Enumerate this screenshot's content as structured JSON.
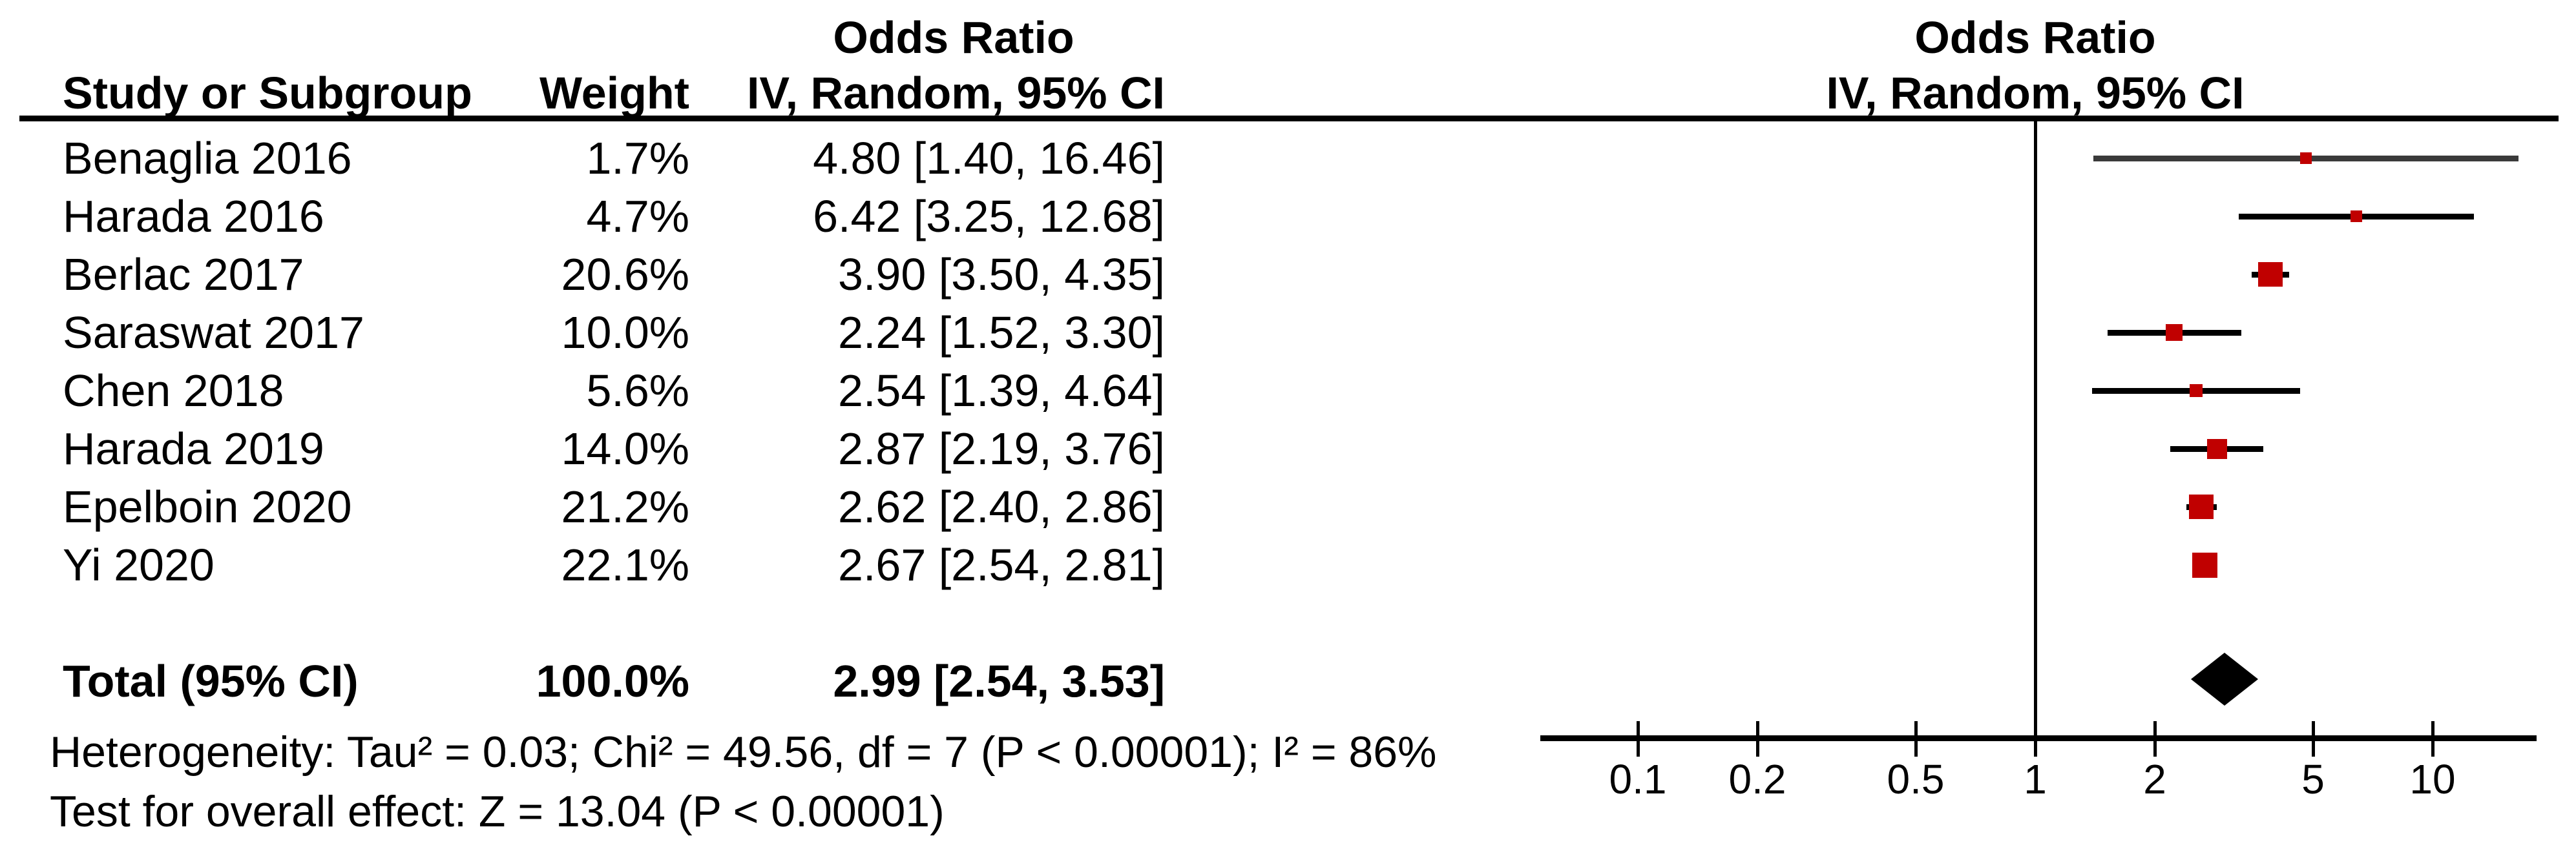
{
  "table": {
    "study_col_header": "Study or Subgroup",
    "weight_col_header": "Weight",
    "stat_col_header_line1": "Odds Ratio",
    "stat_col_header_line2": "IV, Random, 95% CI",
    "plot_header_line1": "Odds Ratio",
    "plot_header_line2": "IV, Random, 95% CI"
  },
  "chart_data": {
    "type": "forest",
    "effect_measure": "Odds Ratio",
    "model": "IV, Random, 95% CI",
    "x_scale": "log10",
    "x_ticks": [
      0.1,
      0.2,
      0.5,
      1,
      2,
      5,
      10
    ],
    "no_effect_value": 1,
    "marker_color": "#c00000",
    "diamond_color": "#000000",
    "studies": [
      {
        "name": "Benaglia 2016",
        "weight": "1.7%",
        "weight_value": 1.7,
        "or": 4.8,
        "ci_low": 1.4,
        "ci_high": 16.46,
        "label": "4.80 [1.40, 16.46]",
        "line_color": "#3a3a3a"
      },
      {
        "name": "Harada 2016",
        "weight": "4.7%",
        "weight_value": 4.7,
        "or": 6.42,
        "ci_low": 3.25,
        "ci_high": 12.68,
        "label": "6.42 [3.25, 12.68]",
        "line_color": "#000000"
      },
      {
        "name": "Berlac 2017",
        "weight": "20.6%",
        "weight_value": 20.6,
        "or": 3.9,
        "ci_low": 3.5,
        "ci_high": 4.35,
        "label": "3.90 [3.50, 4.35]",
        "line_color": "#000000"
      },
      {
        "name": "Saraswat 2017",
        "weight": "10.0%",
        "weight_value": 10.0,
        "or": 2.24,
        "ci_low": 1.52,
        "ci_high": 3.3,
        "label": "2.24 [1.52, 3.30]",
        "line_color": "#000000"
      },
      {
        "name": "Chen 2018",
        "weight": "5.6%",
        "weight_value": 5.6,
        "or": 2.54,
        "ci_low": 1.39,
        "ci_high": 4.64,
        "label": "2.54 [1.39, 4.64]",
        "line_color": "#000000"
      },
      {
        "name": "Harada 2019",
        "weight": "14.0%",
        "weight_value": 14.0,
        "or": 2.87,
        "ci_low": 2.19,
        "ci_high": 3.76,
        "label": "2.87 [2.19, 3.76]",
        "line_color": "#000000"
      },
      {
        "name": "Epelboin 2020",
        "weight": "21.2%",
        "weight_value": 21.2,
        "or": 2.62,
        "ci_low": 2.4,
        "ci_high": 2.86,
        "label": "2.62 [2.40, 2.86]",
        "line_color": "#000000"
      },
      {
        "name": "Yi 2020",
        "weight": "22.1%",
        "weight_value": 22.1,
        "or": 2.67,
        "ci_low": 2.54,
        "ci_high": 2.81,
        "label": "2.67 [2.54, 2.81]",
        "line_color": "#000000"
      }
    ],
    "total": {
      "name": "Total (95% CI)",
      "weight": "100.0%",
      "or": 2.99,
      "ci_low": 2.54,
      "ci_high": 3.53,
      "label": "2.99 [2.54, 3.53]"
    },
    "footer": {
      "heterogeneity": "Heterogeneity: Tau² = 0.03; Chi² = 49.56, df = 7 (P < 0.00001); I² = 86%",
      "overall_effect": "Test for overall effect: Z = 13.04 (P < 0.00001)"
    }
  }
}
